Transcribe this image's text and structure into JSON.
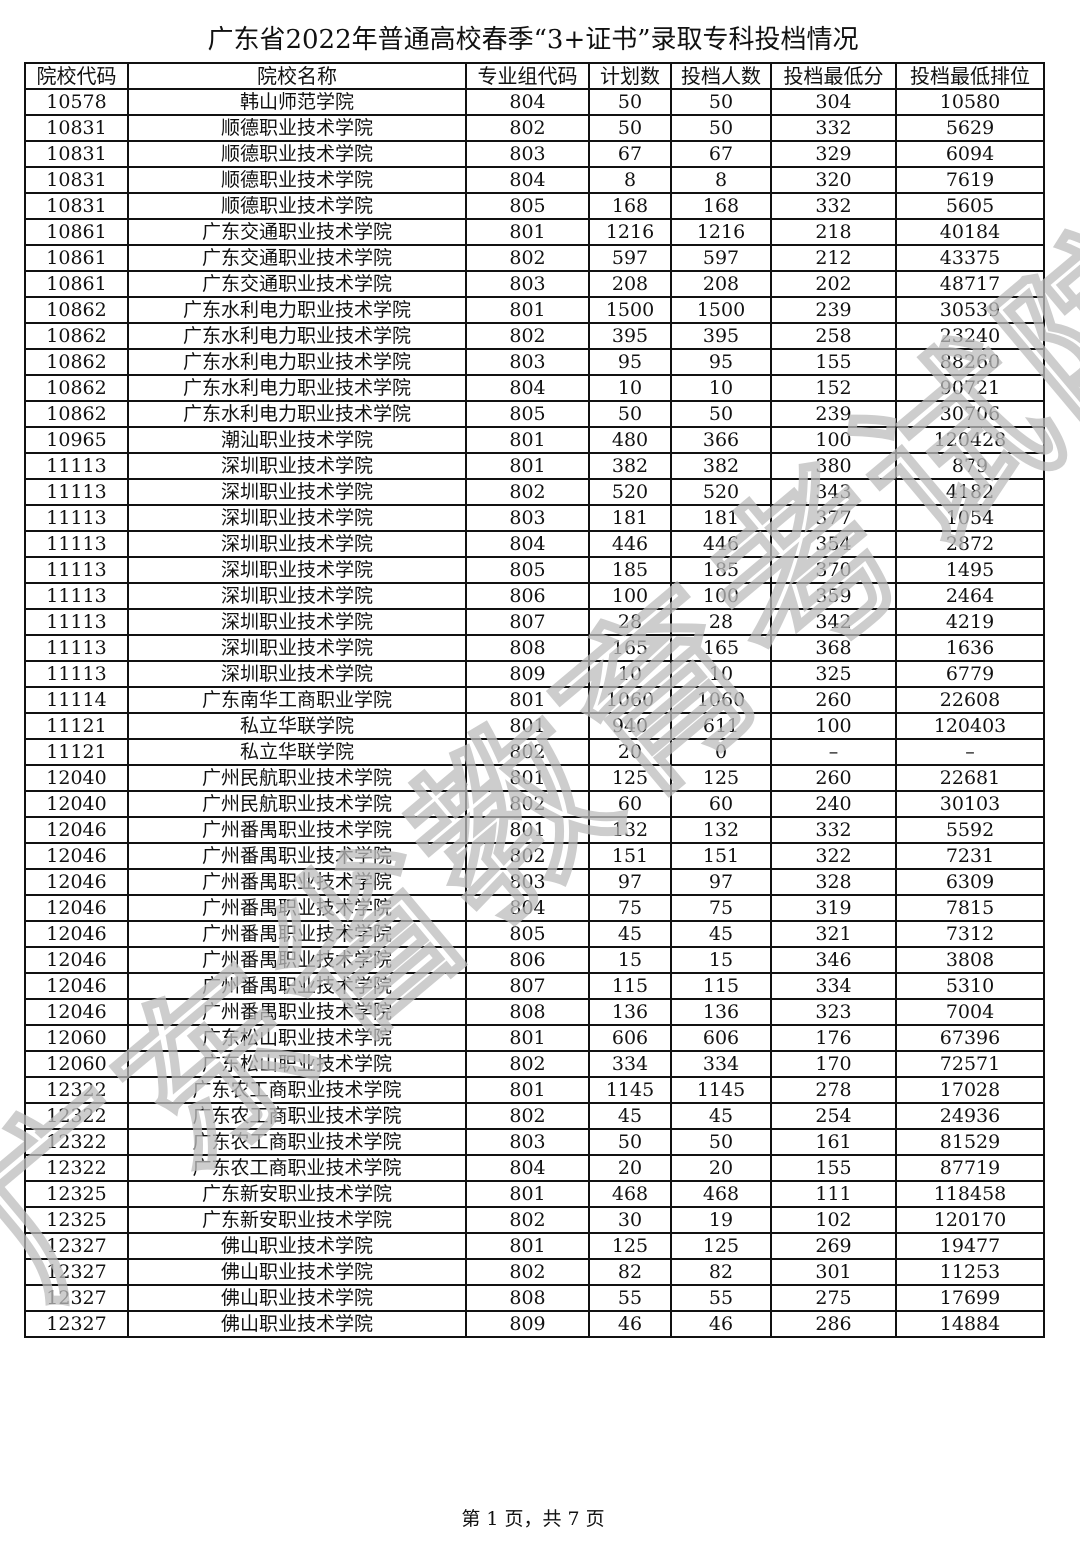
{
  "title": "广东省2022年普通高校春季“3+证书”录取专科投档情况",
  "table": {
    "headers": [
      "院校代码",
      "院校名称",
      "专业组代码",
      "计划数",
      "投档人数",
      "投档最低分",
      "投档最低排位"
    ],
    "rows": [
      [
        "10578",
        "韩山师范学院",
        "804",
        "50",
        "50",
        "304",
        "10580"
      ],
      [
        "10831",
        "顺德职业技术学院",
        "802",
        "50",
        "50",
        "332",
        "5629"
      ],
      [
        "10831",
        "顺德职业技术学院",
        "803",
        "67",
        "67",
        "329",
        "6094"
      ],
      [
        "10831",
        "顺德职业技术学院",
        "804",
        "8",
        "8",
        "320",
        "7619"
      ],
      [
        "10831",
        "顺德职业技术学院",
        "805",
        "168",
        "168",
        "332",
        "5605"
      ],
      [
        "10861",
        "广东交通职业技术学院",
        "801",
        "1216",
        "1216",
        "218",
        "40184"
      ],
      [
        "10861",
        "广东交通职业技术学院",
        "802",
        "597",
        "597",
        "212",
        "43375"
      ],
      [
        "10861",
        "广东交通职业技术学院",
        "803",
        "208",
        "208",
        "202",
        "48717"
      ],
      [
        "10862",
        "广东水利电力职业技术学院",
        "801",
        "1500",
        "1500",
        "239",
        "30539"
      ],
      [
        "10862",
        "广东水利电力职业技术学院",
        "802",
        "395",
        "395",
        "258",
        "23240"
      ],
      [
        "10862",
        "广东水利电力职业技术学院",
        "803",
        "95",
        "95",
        "155",
        "88260"
      ],
      [
        "10862",
        "广东水利电力职业技术学院",
        "804",
        "10",
        "10",
        "152",
        "90721"
      ],
      [
        "10862",
        "广东水利电力职业技术学院",
        "805",
        "50",
        "50",
        "239",
        "30706"
      ],
      [
        "10965",
        "潮汕职业技术学院",
        "801",
        "480",
        "366",
        "100",
        "120428"
      ],
      [
        "11113",
        "深圳职业技术学院",
        "801",
        "382",
        "382",
        "380",
        "879"
      ],
      [
        "11113",
        "深圳职业技术学院",
        "802",
        "520",
        "520",
        "343",
        "4182"
      ],
      [
        "11113",
        "深圳职业技术学院",
        "803",
        "181",
        "181",
        "377",
        "1054"
      ],
      [
        "11113",
        "深圳职业技术学院",
        "804",
        "446",
        "446",
        "354",
        "2872"
      ],
      [
        "11113",
        "深圳职业技术学院",
        "805",
        "185",
        "185",
        "370",
        "1495"
      ],
      [
        "11113",
        "深圳职业技术学院",
        "806",
        "100",
        "100",
        "359",
        "2464"
      ],
      [
        "11113",
        "深圳职业技术学院",
        "807",
        "28",
        "28",
        "342",
        "4219"
      ],
      [
        "11113",
        "深圳职业技术学院",
        "808",
        "165",
        "165",
        "368",
        "1636"
      ],
      [
        "11113",
        "深圳职业技术学院",
        "809",
        "10",
        "10",
        "325",
        "6779"
      ],
      [
        "11114",
        "广东南华工商职业学院",
        "801",
        "1060",
        "1060",
        "260",
        "22608"
      ],
      [
        "11121",
        "私立华联学院",
        "801",
        "940",
        "611",
        "100",
        "120403"
      ],
      [
        "11121",
        "私立华联学院",
        "802",
        "20",
        "0",
        "–",
        "–"
      ],
      [
        "12040",
        "广州民航职业技术学院",
        "801",
        "125",
        "125",
        "260",
        "22681"
      ],
      [
        "12040",
        "广州民航职业技术学院",
        "802",
        "60",
        "60",
        "240",
        "30103"
      ],
      [
        "12046",
        "广州番禺职业技术学院",
        "801",
        "132",
        "132",
        "332",
        "5592"
      ],
      [
        "12046",
        "广州番禺职业技术学院",
        "802",
        "151",
        "151",
        "322",
        "7231"
      ],
      [
        "12046",
        "广州番禺职业技术学院",
        "803",
        "97",
        "97",
        "328",
        "6309"
      ],
      [
        "12046",
        "广州番禺职业技术学院",
        "804",
        "75",
        "75",
        "319",
        "7815"
      ],
      [
        "12046",
        "广州番禺职业技术学院",
        "805",
        "45",
        "45",
        "321",
        "7312"
      ],
      [
        "12046",
        "广州番禺职业技术学院",
        "806",
        "15",
        "15",
        "346",
        "3808"
      ],
      [
        "12046",
        "广州番禺职业技术学院",
        "807",
        "115",
        "115",
        "334",
        "5310"
      ],
      [
        "12046",
        "广州番禺职业技术学院",
        "808",
        "136",
        "136",
        "323",
        "7004"
      ],
      [
        "12060",
        "广东松山职业技术学院",
        "801",
        "606",
        "606",
        "176",
        "67396"
      ],
      [
        "12060",
        "广东松山职业技术学院",
        "802",
        "334",
        "334",
        "170",
        "72571"
      ],
      [
        "12322",
        "广东农工商职业技术学院",
        "801",
        "1145",
        "1145",
        "278",
        "17028"
      ],
      [
        "12322",
        "广东农工商职业技术学院",
        "802",
        "45",
        "45",
        "254",
        "24936"
      ],
      [
        "12322",
        "广东农工商职业技术学院",
        "803",
        "50",
        "50",
        "161",
        "81529"
      ],
      [
        "12322",
        "广东农工商职业技术学院",
        "804",
        "20",
        "20",
        "155",
        "87719"
      ],
      [
        "12325",
        "广东新安职业技术学院",
        "801",
        "468",
        "468",
        "111",
        "118458"
      ],
      [
        "12325",
        "广东新安职业技术学院",
        "802",
        "30",
        "19",
        "102",
        "120170"
      ],
      [
        "12327",
        "佛山职业技术学院",
        "801",
        "125",
        "125",
        "269",
        "19477"
      ],
      [
        "12327",
        "佛山职业技术学院",
        "802",
        "82",
        "82",
        "301",
        "11253"
      ],
      [
        "12327",
        "佛山职业技术学院",
        "808",
        "55",
        "55",
        "275",
        "17699"
      ],
      [
        "12327",
        "佛山职业技术学院",
        "809",
        "46",
        "46",
        "286",
        "14884"
      ]
    ]
  },
  "footer": "第 1 页，共 7 页",
  "watermark": "广东省教育考试院",
  "colors": {
    "text": "#111111",
    "watermark": "#c8c8c8"
  }
}
